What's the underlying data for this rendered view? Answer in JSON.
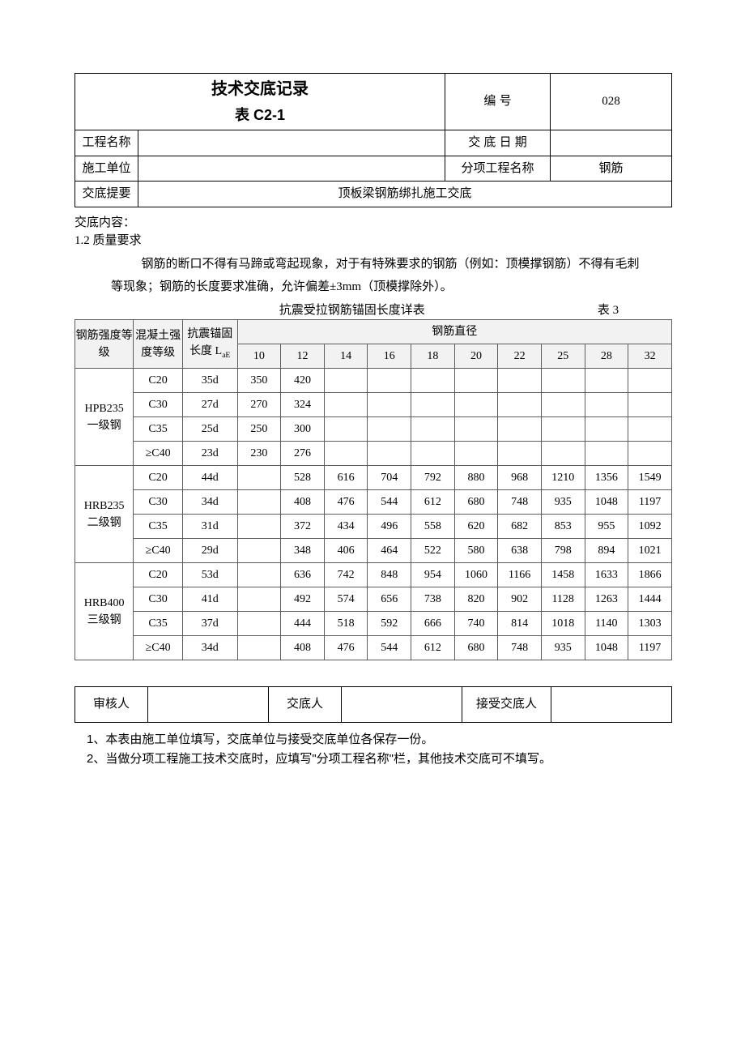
{
  "header": {
    "title_main": "技术交底记录",
    "title_sub": "表 C2-1",
    "code_label": "编  号",
    "code_value": "028",
    "project_name_label": "工程名称",
    "project_name_value": "",
    "date_label": "交 底 日 期",
    "date_value": "",
    "contractor_label": "施工单位",
    "contractor_value": "",
    "subitem_label": "分项工程名称",
    "subitem_value": "钢筋",
    "summary_label": "交底提要",
    "summary_value": "顶板梁钢筋绑扎施工交底"
  },
  "content": {
    "heading": "交底内容：",
    "subheading": "1.2 质量要求",
    "para1": "钢筋的断口不得有马蹄或弯起现象，对于有特殊要求的钢筋（例如：顶模撑钢筋）不得有毛刺",
    "para2": "等现象；钢筋的长度要求准确，允许偏差±3mm（顶模撑除外）。",
    "data_caption": "抗震受拉钢筋锚固长度详表",
    "data_caption_num": "表 3"
  },
  "data_table": {
    "h_steel_grade": "钢筋强度等级",
    "h_concrete_grade": "混凝土强度等级",
    "h_anchor": "抗震锚固长度 L",
    "h_anchor_sub": "aE",
    "h_diameter": "钢筋直径",
    "diameters": [
      "10",
      "12",
      "14",
      "16",
      "18",
      "20",
      "22",
      "25",
      "28",
      "32"
    ],
    "groups": [
      {
        "name": "HPB235 一级钢",
        "rows": [
          {
            "conc": "C20",
            "lae": "35d",
            "vals": [
              "350",
              "420",
              "",
              "",
              "",
              "",
              "",
              "",
              "",
              ""
            ]
          },
          {
            "conc": "C30",
            "lae": "27d",
            "vals": [
              "270",
              "324",
              "",
              "",
              "",
              "",
              "",
              "",
              "",
              ""
            ]
          },
          {
            "conc": "C35",
            "lae": "25d",
            "vals": [
              "250",
              "300",
              "",
              "",
              "",
              "",
              "",
              "",
              "",
              ""
            ]
          },
          {
            "conc": "≥C40",
            "lae": "23d",
            "vals": [
              "230",
              "276",
              "",
              "",
              "",
              "",
              "",
              "",
              "",
              ""
            ]
          }
        ]
      },
      {
        "name": "HRB235 二级钢",
        "rows": [
          {
            "conc": "C20",
            "lae": "44d",
            "vals": [
              "",
              "528",
              "616",
              "704",
              "792",
              "880",
              "968",
              "1210",
              "1356",
              "1549"
            ]
          },
          {
            "conc": "C30",
            "lae": "34d",
            "vals": [
              "",
              "408",
              "476",
              "544",
              "612",
              "680",
              "748",
              "935",
              "1048",
              "1197"
            ]
          },
          {
            "conc": "C35",
            "lae": "31d",
            "vals": [
              "",
              "372",
              "434",
              "496",
              "558",
              "620",
              "682",
              "853",
              "955",
              "1092"
            ]
          },
          {
            "conc": "≥C40",
            "lae": "29d",
            "vals": [
              "",
              "348",
              "406",
              "464",
              "522",
              "580",
              "638",
              "798",
              "894",
              "1021"
            ]
          }
        ]
      },
      {
        "name": "HRB400 三级钢",
        "rows": [
          {
            "conc": "C20",
            "lae": "53d",
            "vals": [
              "",
              "636",
              "742",
              "848",
              "954",
              "1060",
              "1166",
              "1458",
              "1633",
              "1866"
            ]
          },
          {
            "conc": "C30",
            "lae": "41d",
            "vals": [
              "",
              "492",
              "574",
              "656",
              "738",
              "820",
              "902",
              "1128",
              "1263",
              "1444"
            ]
          },
          {
            "conc": "C35",
            "lae": "37d",
            "vals": [
              "",
              "444",
              "518",
              "592",
              "666",
              "740",
              "814",
              "1018",
              "1140",
              "1303"
            ]
          },
          {
            "conc": "≥C40",
            "lae": "34d",
            "vals": [
              "",
              "408",
              "476",
              "544",
              "612",
              "680",
              "748",
              "935",
              "1048",
              "1197"
            ]
          }
        ]
      }
    ],
    "colwidths": {
      "grade": 62,
      "conc": 52,
      "lae": 58,
      "dia": 46
    },
    "colors": {
      "header_bg": "#f2f2f2",
      "border": "#5c5c5a"
    }
  },
  "sig": {
    "reviewer": "审核人",
    "disclosed_by": "交底人",
    "received_by": "接受交底人"
  },
  "notes": {
    "n1": "1、本表由施工单位填写，交底单位与接受交底单位各保存一份。",
    "n2": "2、当做分项工程施工技术交底时，应填写\"分项工程名称\"栏，其他技术交底可不填写。"
  }
}
